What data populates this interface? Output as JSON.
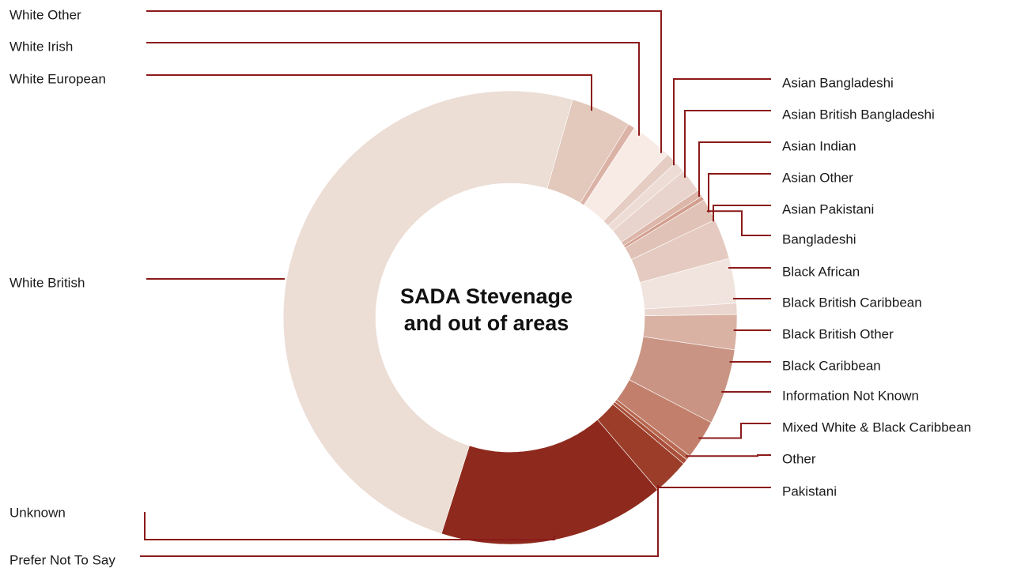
{
  "chart_data": {
    "type": "pie",
    "title_lines": [
      "SADA Stevenage",
      "and out of areas"
    ],
    "leader_color": "#8b1a1a",
    "slices": [
      {
        "label": "White European",
        "value": 4.3,
        "color": "#e3c8bc"
      },
      {
        "label": "White Irish",
        "value": 0.5,
        "color": "#dbb3a6"
      },
      {
        "label": "White Other",
        "value": 3.0,
        "color": "#f8ebe6"
      },
      {
        "label": "Asian Bangladeshi",
        "value": 0.8,
        "color": "#e5cdc3"
      },
      {
        "label": "Asian British Bangladeshi",
        "value": 0.8,
        "color": "#eddcd5"
      },
      {
        "label": "Asian Indian",
        "value": 1.7,
        "color": "#e8d4cc"
      },
      {
        "label": "Asian Other",
        "value": 0.5,
        "color": "#ddb6aa"
      },
      {
        "label": "Asian Pakistani",
        "value": 0.3,
        "color": "#d29e8e"
      },
      {
        "label": "Bangladeshi",
        "value": 1.6,
        "color": "#e1c2b6"
      },
      {
        "label": "Black African",
        "value": 2.9,
        "color": "#e4cac0"
      },
      {
        "label": "Black British Caribbean",
        "value": 3.2,
        "color": "#f1e4de"
      },
      {
        "label": "Black British Other",
        "value": 0.8,
        "color": "#ead6ce"
      },
      {
        "label": "Black Caribbean",
        "value": 2.5,
        "color": "#d9b2a4"
      },
      {
        "label": "Information Not Known",
        "value": 5.4,
        "color": "#c99483"
      },
      {
        "label": "Mixed White & Black Caribbean",
        "value": 2.8,
        "color": "#c2806c"
      },
      {
        "label": "Other",
        "value": 0.35,
        "color": "#b86850"
      },
      {
        "label": "Pakistani",
        "value": 0.35,
        "color": "#a94e38"
      },
      {
        "label": "Prefer Not To Say",
        "value": 2.6,
        "color": "#9b3d29"
      },
      {
        "label": "Unknown",
        "value": 16.2,
        "color": "#8e2a1d"
      },
      {
        "label": "White British",
        "value": 49.7,
        "color": "#ecddd5"
      }
    ]
  }
}
